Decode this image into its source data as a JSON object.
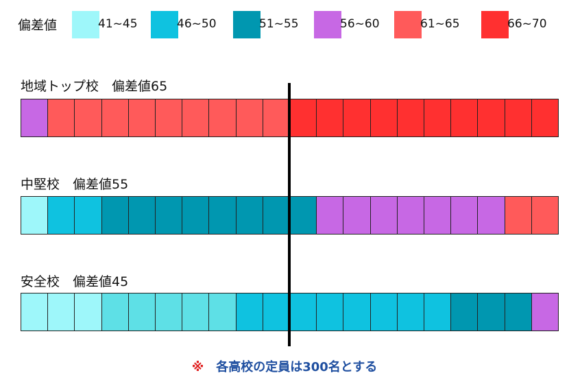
{
  "legend": {
    "title": "偏差値",
    "items": [
      {
        "label": "41~45",
        "color": "#9ef7fa"
      },
      {
        "label": "46~50",
        "color": "#0fc2e0"
      },
      {
        "label": "51~55",
        "color": "#0097b0"
      },
      {
        "label": "56~60",
        "color": "#c768e4"
      },
      {
        "label": "61~65",
        "color": "#ff5a5a"
      },
      {
        "label": "66~70",
        "color": "#ff3030"
      }
    ]
  },
  "rows": [
    {
      "title": "地域トップ校　偏差値65",
      "cells": [
        "56~60",
        "61~65",
        "61~65",
        "61~65",
        "61~65",
        "61~65",
        "61~65",
        "61~65",
        "61~65",
        "61~65",
        "66~70",
        "66~70",
        "66~70",
        "66~70",
        "66~70",
        "66~70",
        "66~70",
        "66~70",
        "66~70",
        "66~70"
      ]
    },
    {
      "title": "中堅校　偏差値55",
      "cells": [
        "41~45",
        "46~50",
        "46~50",
        "51~55",
        "51~55",
        "51~55",
        "51~55",
        "51~55",
        "51~55",
        "51~55",
        "51~55",
        "56~60",
        "56~60",
        "56~60",
        "56~60",
        "56~60",
        "56~60",
        "56~60",
        "61~65",
        "61~65"
      ]
    },
    {
      "title": "安全校　偏差値45",
      "cells": [
        "41~45",
        "41~45",
        "41~45",
        "41~45b",
        "41~45b",
        "41~45b",
        "41~45b",
        "41~45b",
        "46~50",
        "46~50",
        "46~50",
        "46~50",
        "46~50",
        "46~50",
        "46~50",
        "46~50",
        "51~55",
        "51~55",
        "51~55",
        "56~60"
      ]
    }
  ],
  "extra_colors": {
    "41~45b": "#5ee0e6"
  },
  "footnote": {
    "mark": "※",
    "text": "各高校の定員は300名とする"
  }
}
